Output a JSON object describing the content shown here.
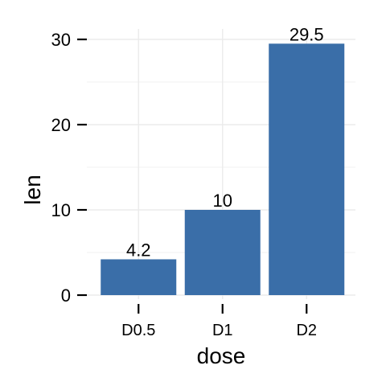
{
  "chart_data": {
    "type": "bar",
    "title": "",
    "xlabel": "dose",
    "ylabel": "len",
    "categories": [
      "D0.5",
      "D1",
      "D2"
    ],
    "values": [
      4.2,
      10,
      29.5
    ],
    "data_labels": [
      "4.2",
      "10",
      "29.5"
    ],
    "yticks": [
      0,
      10,
      20,
      30
    ],
    "ylim": [
      0,
      30
    ],
    "grid": true,
    "legend": "none",
    "bar_color": "#3a6ea8",
    "grid_color": "#ebebeb"
  }
}
